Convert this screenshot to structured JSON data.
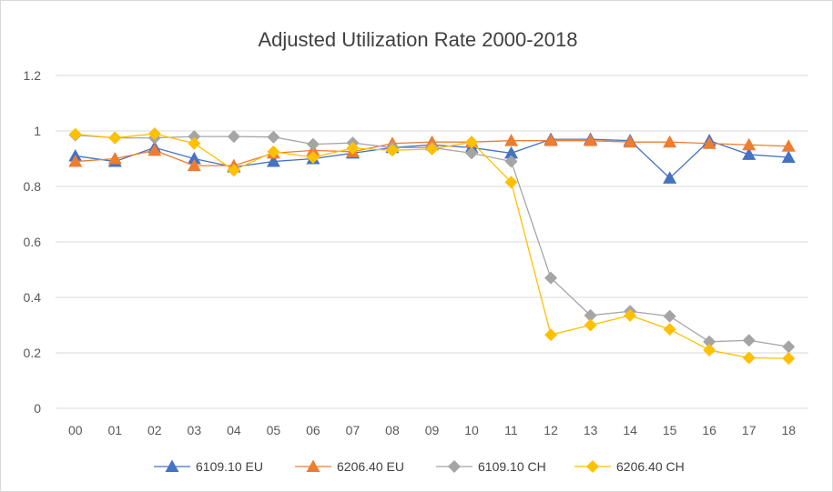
{
  "chart_data": {
    "type": "line",
    "title": "Adjusted Utilization Rate 2000-2018",
    "xlabel": "",
    "ylabel": "",
    "categories": [
      "00",
      "01",
      "02",
      "03",
      "04",
      "05",
      "06",
      "07",
      "08",
      "09",
      "10",
      "11",
      "12",
      "13",
      "14",
      "15",
      "16",
      "17",
      "18"
    ],
    "ylim": [
      0,
      1.2
    ],
    "yticks": [
      "0",
      "0.2",
      "0.4",
      "0.6",
      "0.8",
      "1",
      "1.2"
    ],
    "ytick_values": [
      0,
      0.2,
      0.4,
      0.6,
      0.8,
      1,
      1.2
    ],
    "grid": "horizontal",
    "legend_position": "bottom",
    "series": [
      {
        "name": "6109.10 EU",
        "color": "#4472C4",
        "marker": "triangle",
        "values": [
          0.91,
          0.89,
          0.94,
          0.9,
          0.87,
          0.89,
          0.9,
          0.92,
          0.94,
          0.95,
          0.94,
          0.92,
          0.97,
          0.97,
          0.965,
          0.83,
          0.965,
          0.915,
          0.905
        ]
      },
      {
        "name": "6206.40 EU",
        "color": "#ED7D31",
        "marker": "triangle",
        "values": [
          0.89,
          0.9,
          0.93,
          0.875,
          0.875,
          0.92,
          0.93,
          0.925,
          0.955,
          0.96,
          0.96,
          0.965,
          0.965,
          0.965,
          0.96,
          0.96,
          0.955,
          0.95,
          0.945
        ]
      },
      {
        "name": "6109.10 CH",
        "color": "#A5A5A5",
        "marker": "diamond",
        "values": [
          0.985,
          0.975,
          0.975,
          0.98,
          0.98,
          0.978,
          0.952,
          0.957,
          0.94,
          0.94,
          0.92,
          0.89,
          0.47,
          0.335,
          0.35,
          0.332,
          0.24,
          0.245,
          0.222
        ]
      },
      {
        "name": "6206.40 CH",
        "color": "#FFC000",
        "marker": "diamond",
        "values": [
          0.988,
          0.975,
          0.99,
          0.955,
          0.858,
          0.925,
          0.905,
          0.938,
          0.93,
          0.935,
          0.96,
          0.815,
          0.265,
          0.3,
          0.335,
          0.285,
          0.21,
          0.182,
          0.18
        ]
      }
    ]
  }
}
